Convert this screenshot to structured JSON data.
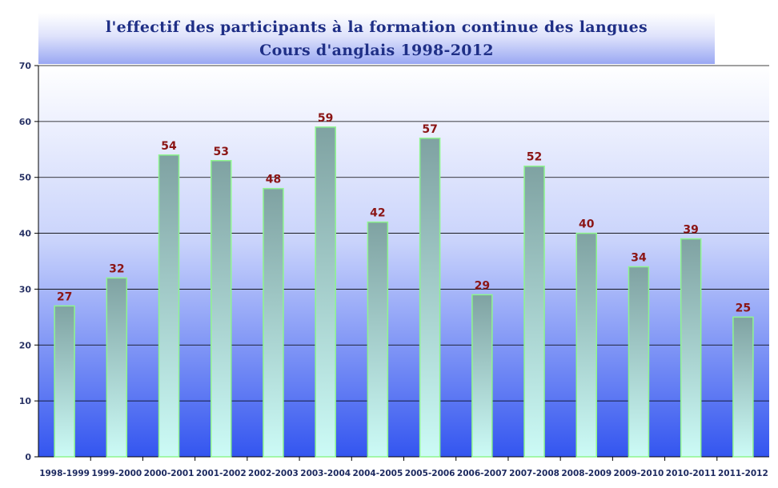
{
  "title": {
    "line1": "l'effectif des participants à la formation continue des langues",
    "line2": "Cours d'anglais 1998-2012"
  },
  "chart_data": {
    "type": "bar",
    "title": "l'effectif des participants à la formation continue des langues — Cours d'anglais 1998-2012",
    "categories": [
      "1998-1999",
      "1999-2000",
      "2000-2001",
      "2001-2002",
      "2002-2003",
      "2003-2004",
      "2004-2005",
      "2005-2006",
      "2006-2007",
      "2007-2008",
      "2008-2009",
      "2009-2010",
      "2010-2011",
      "2011-2012"
    ],
    "values": [
      27,
      32,
      54,
      53,
      48,
      59,
      42,
      57,
      29,
      52,
      40,
      34,
      39,
      25
    ],
    "xlabel": "",
    "ylabel": "",
    "ylim": [
      0,
      70
    ],
    "yticks": [
      0,
      10,
      20,
      30,
      40,
      50,
      60,
      70
    ],
    "grid": true,
    "legend": "none",
    "colors": {
      "bar_top": "#7fa2a2",
      "bar_bottom": "#ccfbf6",
      "bar_edge": "#8ef58e",
      "value_label": "#8b1515",
      "background_top": "#ffffff",
      "background_bottom": "#3355f0",
      "gridline": "#000000"
    }
  }
}
